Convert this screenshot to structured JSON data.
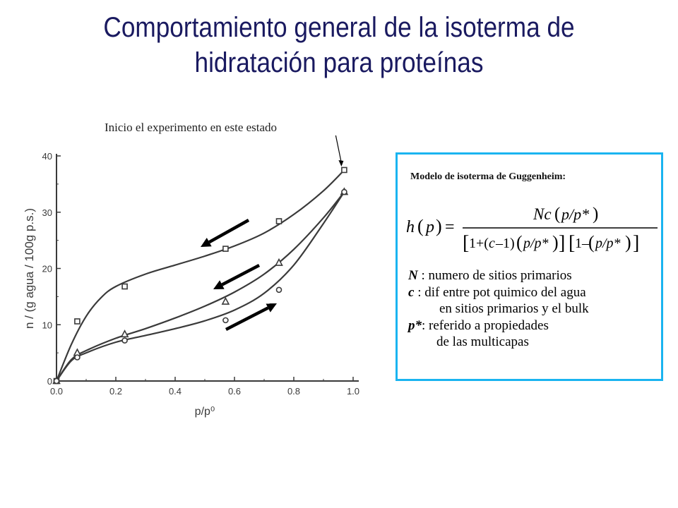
{
  "title": {
    "line1": "Comportamiento general de la isoterma de",
    "line2": "hidratación para proteínas"
  },
  "annotation": "Inicio el experimento en este estado",
  "model": {
    "title": "Modelo de isoterma  de Guggenheim:",
    "formula": {
      "lhs": "h(p) =",
      "numerator": "Nc(p/p*)",
      "denominator": "[1+(c−1)(p/p*)][1−(p/p*)]"
    },
    "definitions": [
      {
        "symbol": "N",
        "text": " : numero de sitios primarios"
      },
      {
        "symbol": "c",
        "text": "  : dif entre pot quimico del agua"
      },
      {
        "symbol": "",
        "text": "en sitios primarios y el bulk"
      },
      {
        "symbol": "p*",
        "text": ": referido a propiedades"
      },
      {
        "symbol": "",
        "text": "de las multicapas"
      }
    ]
  },
  "chart_data": {
    "type": "scatter",
    "xlabel": "p/p⁰",
    "ylabel": "n / (g agua / 100g p.s.)",
    "xlim": [
      0.0,
      1.0
    ],
    "ylim": [
      0,
      40
    ],
    "xticks": [
      "0.0",
      "0.2",
      "0.4",
      "0.6",
      "0.8",
      "1.0"
    ],
    "yticks": [
      "0",
      "10",
      "20",
      "30",
      "40"
    ],
    "series": [
      {
        "marker": "square",
        "x": [
          0.0,
          0.07,
          0.23,
          0.57,
          0.75,
          0.97
        ],
        "y": [
          0,
          10.6,
          16.8,
          23.5,
          28.4,
          37.5
        ],
        "curve_x": [
          0.0,
          0.05,
          0.1,
          0.15,
          0.2,
          0.3,
          0.4,
          0.5,
          0.6,
          0.7,
          0.8,
          0.9,
          0.97
        ],
        "curve_y": [
          0,
          6.5,
          11.5,
          14.8,
          16.8,
          19.0,
          20.6,
          22.2,
          24.0,
          26.3,
          29.6,
          33.8,
          37.5
        ]
      },
      {
        "marker": "triangle",
        "x": [
          0.0,
          0.07,
          0.23,
          0.57,
          0.75,
          0.97
        ],
        "y": [
          0,
          5.0,
          8.3,
          14.1,
          21.0,
          33.6
        ],
        "curve_x": [
          0.0,
          0.05,
          0.1,
          0.2,
          0.3,
          0.4,
          0.5,
          0.6,
          0.7,
          0.8,
          0.9,
          0.97
        ],
        "curve_y": [
          0,
          3.8,
          5.4,
          7.6,
          9.3,
          11.2,
          13.3,
          15.8,
          19.0,
          23.4,
          29.0,
          33.6
        ]
      },
      {
        "marker": "circle",
        "x": [
          0.0,
          0.07,
          0.23,
          0.57,
          0.75,
          0.97
        ],
        "y": [
          0,
          4.2,
          7.2,
          10.8,
          16.2,
          33.6
        ],
        "curve_x": [
          0.0,
          0.05,
          0.1,
          0.2,
          0.3,
          0.4,
          0.5,
          0.6,
          0.7,
          0.8,
          0.9,
          0.97
        ],
        "curve_y": [
          0,
          3.6,
          5.0,
          6.9,
          8.1,
          9.3,
          10.7,
          12.6,
          15.6,
          20.6,
          28.0,
          33.6
        ]
      }
    ],
    "direction_arrows": [
      "down-left",
      "down-left",
      "up-right"
    ]
  },
  "colors": {
    "title": "#1a1a60",
    "box_border": "#1ab4f0",
    "plot_ink": "#3a3a3a"
  }
}
